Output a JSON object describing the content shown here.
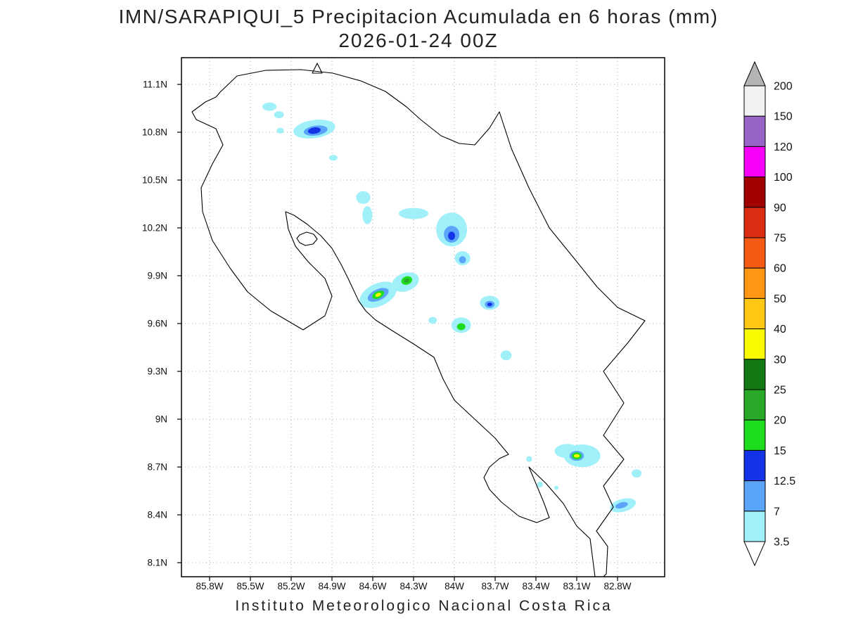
{
  "title": {
    "line1": "IMN/SARAPIQUI_5 Precipitacion Acumulada en 6 horas (mm)",
    "line2": "2026-01-24 00Z"
  },
  "footer": "Instituto Meteorologico Nacional Costa Rica",
  "map": {
    "y_axis_labels": [
      "11.1N",
      "10.8N",
      "10.5N",
      "10.2N",
      "9.9N",
      "9.6N",
      "9.3N",
      "9N",
      "8.7N",
      "8.4N",
      "8.1N"
    ],
    "x_axis_labels": [
      "85.8W",
      "85.5W",
      "85.2W",
      "84.9W",
      "84.6W",
      "84.3W",
      "84W",
      "83.7W",
      "83.4W",
      "83.1W",
      "82.8W"
    ]
  },
  "colorbar": {
    "tick_labels_top_to_bottom": [
      "200",
      "150",
      "120",
      "100",
      "90",
      "75",
      "60",
      "50",
      "40",
      "30",
      "25",
      "20",
      "15",
      "12.5",
      "7",
      "3.5"
    ],
    "arrow_top_color": "#b4b4b4",
    "arrow_bottom_color": "#ffffff",
    "segments_top_to_bottom": [
      "#f2f2f2",
      "#9964c8",
      "#fa00fa",
      "#a00000",
      "#dc2d14",
      "#f55a14",
      "#ff9614",
      "#ffc814",
      "#fafa00",
      "#147814",
      "#28aa28",
      "#1edc1e",
      "#1432e6",
      "#5aa5fa",
      "#a0f0fa"
    ]
  },
  "chart_data": {
    "type": "filled-contour-map",
    "title": "IMN/SARAPIQUI_5 Precipitacion Acumulada en 6 horas (mm)",
    "valid_time": "2026-01-24 00Z",
    "units": "mm",
    "region": "Costa Rica",
    "lon_ticks_w": [
      85.8,
      85.5,
      85.2,
      84.9,
      84.6,
      84.3,
      84.0,
      83.7,
      83.4,
      83.1,
      82.8
    ],
    "lat_ticks_n": [
      11.1,
      10.8,
      10.5,
      10.2,
      9.9,
      9.6,
      9.3,
      9.0,
      8.7,
      8.4,
      8.1
    ],
    "contour_levels_mm": [
      3.5,
      7,
      12.5,
      15,
      20,
      25,
      30,
      40,
      50,
      60,
      75,
      90,
      100,
      120,
      150,
      200
    ],
    "precip_cells": [
      {
        "lon_w": 85.36,
        "lat_n": 10.96,
        "rx_deg": 0.052,
        "ry_deg": 0.026,
        "rot_deg": 0,
        "min_mm": 3.5
      },
      {
        "lon_w": 85.29,
        "lat_n": 10.91,
        "rx_deg": 0.036,
        "ry_deg": 0.022,
        "rot_deg": 0,
        "min_mm": 3.5
      },
      {
        "lon_w": 85.03,
        "lat_n": 10.82,
        "rx_deg": 0.155,
        "ry_deg": 0.057,
        "rot_deg": -8,
        "min_mm": 3.5
      },
      {
        "lon_w": 85.02,
        "lat_n": 10.81,
        "rx_deg": 0.088,
        "ry_deg": 0.031,
        "rot_deg": -8,
        "min_mm": 7
      },
      {
        "lon_w": 85.03,
        "lat_n": 10.81,
        "rx_deg": 0.047,
        "ry_deg": 0.02,
        "rot_deg": -8,
        "min_mm": 12.5
      },
      {
        "lon_w": 85.28,
        "lat_n": 10.81,
        "rx_deg": 0.026,
        "ry_deg": 0.018,
        "rot_deg": 0,
        "min_mm": 3.5
      },
      {
        "lon_w": 84.89,
        "lat_n": 10.64,
        "rx_deg": 0.031,
        "ry_deg": 0.018,
        "rot_deg": 0,
        "min_mm": 3.5
      },
      {
        "lon_w": 84.67,
        "lat_n": 10.39,
        "rx_deg": 0.052,
        "ry_deg": 0.04,
        "rot_deg": 0,
        "min_mm": 3.5
      },
      {
        "lon_w": 84.64,
        "lat_n": 10.28,
        "rx_deg": 0.036,
        "ry_deg": 0.057,
        "rot_deg": 0,
        "min_mm": 3.5
      },
      {
        "lon_w": 84.3,
        "lat_n": 10.29,
        "rx_deg": 0.109,
        "ry_deg": 0.035,
        "rot_deg": 0,
        "min_mm": 3.5
      },
      {
        "lon_w": 84.02,
        "lat_n": 10.19,
        "rx_deg": 0.114,
        "ry_deg": 0.106,
        "rot_deg": 0,
        "min_mm": 3.5
      },
      {
        "lon_w": 84.02,
        "lat_n": 10.16,
        "rx_deg": 0.057,
        "ry_deg": 0.053,
        "rot_deg": 0,
        "min_mm": 7
      },
      {
        "lon_w": 84.02,
        "lat_n": 10.15,
        "rx_deg": 0.026,
        "ry_deg": 0.026,
        "rot_deg": 0,
        "min_mm": 12.5
      },
      {
        "lon_w": 83.94,
        "lat_n": 10.01,
        "rx_deg": 0.057,
        "ry_deg": 0.044,
        "rot_deg": 0,
        "min_mm": 3.5
      },
      {
        "lon_w": 83.94,
        "lat_n": 10.0,
        "rx_deg": 0.026,
        "ry_deg": 0.022,
        "rot_deg": 0,
        "min_mm": 7
      },
      {
        "lon_w": 84.36,
        "lat_n": 9.86,
        "rx_deg": 0.103,
        "ry_deg": 0.057,
        "rot_deg": -20,
        "min_mm": 3.5
      },
      {
        "lon_w": 84.35,
        "lat_n": 9.87,
        "rx_deg": 0.041,
        "ry_deg": 0.026,
        "rot_deg": -20,
        "min_mm": 15
      },
      {
        "lon_w": 84.35,
        "lat_n": 9.87,
        "rx_deg": 0.021,
        "ry_deg": 0.013,
        "rot_deg": -20,
        "min_mm": 20
      },
      {
        "lon_w": 84.56,
        "lat_n": 9.78,
        "rx_deg": 0.145,
        "ry_deg": 0.071,
        "rot_deg": -25,
        "min_mm": 3.5
      },
      {
        "lon_w": 84.56,
        "lat_n": 9.78,
        "rx_deg": 0.083,
        "ry_deg": 0.035,
        "rot_deg": -25,
        "min_mm": 7
      },
      {
        "lon_w": 84.56,
        "lat_n": 9.78,
        "rx_deg": 0.047,
        "ry_deg": 0.022,
        "rot_deg": -25,
        "min_mm": 15
      },
      {
        "lon_w": 84.56,
        "lat_n": 9.78,
        "rx_deg": 0.023,
        "ry_deg": 0.011,
        "rot_deg": -25,
        "min_mm": 30
      },
      {
        "lon_w": 84.16,
        "lat_n": 9.62,
        "rx_deg": 0.031,
        "ry_deg": 0.022,
        "rot_deg": 0,
        "min_mm": 3.5
      },
      {
        "lon_w": 83.95,
        "lat_n": 9.59,
        "rx_deg": 0.072,
        "ry_deg": 0.049,
        "rot_deg": 0,
        "min_mm": 3.5
      },
      {
        "lon_w": 83.95,
        "lat_n": 9.58,
        "rx_deg": 0.031,
        "ry_deg": 0.022,
        "rot_deg": 0,
        "min_mm": 15
      },
      {
        "lon_w": 83.74,
        "lat_n": 9.73,
        "rx_deg": 0.072,
        "ry_deg": 0.044,
        "rot_deg": 0,
        "min_mm": 3.5
      },
      {
        "lon_w": 83.74,
        "lat_n": 9.72,
        "rx_deg": 0.036,
        "ry_deg": 0.022,
        "rot_deg": 0,
        "min_mm": 7
      },
      {
        "lon_w": 83.74,
        "lat_n": 9.72,
        "rx_deg": 0.018,
        "ry_deg": 0.011,
        "rot_deg": 0,
        "min_mm": 12.5
      },
      {
        "lon_w": 83.62,
        "lat_n": 9.4,
        "rx_deg": 0.041,
        "ry_deg": 0.031,
        "rot_deg": 0,
        "min_mm": 3.5
      },
      {
        "lon_w": 83.17,
        "lat_n": 8.8,
        "rx_deg": 0.093,
        "ry_deg": 0.044,
        "rot_deg": 0,
        "min_mm": 3.5
      },
      {
        "lon_w": 83.06,
        "lat_n": 8.77,
        "rx_deg": 0.134,
        "ry_deg": 0.071,
        "rot_deg": 0,
        "min_mm": 3.5
      },
      {
        "lon_w": 83.1,
        "lat_n": 8.77,
        "rx_deg": 0.052,
        "ry_deg": 0.031,
        "rot_deg": 0,
        "min_mm": 7
      },
      {
        "lon_w": 83.1,
        "lat_n": 8.77,
        "rx_deg": 0.036,
        "ry_deg": 0.022,
        "rot_deg": 0,
        "min_mm": 15
      },
      {
        "lon_w": 83.1,
        "lat_n": 8.77,
        "rx_deg": 0.021,
        "ry_deg": 0.011,
        "rot_deg": 0,
        "min_mm": 30
      },
      {
        "lon_w": 83.45,
        "lat_n": 8.75,
        "rx_deg": 0.021,
        "ry_deg": 0.018,
        "rot_deg": 0,
        "min_mm": 3.5
      },
      {
        "lon_w": 83.37,
        "lat_n": 8.59,
        "rx_deg": 0.021,
        "ry_deg": 0.018,
        "rot_deg": 0,
        "min_mm": 3.5
      },
      {
        "lon_w": 83.25,
        "lat_n": 8.57,
        "rx_deg": 0.016,
        "ry_deg": 0.013,
        "rot_deg": 0,
        "min_mm": 3.5
      },
      {
        "lon_w": 82.66,
        "lat_n": 8.66,
        "rx_deg": 0.036,
        "ry_deg": 0.026,
        "rot_deg": 0,
        "min_mm": 3.5
      },
      {
        "lon_w": 82.76,
        "lat_n": 8.46,
        "rx_deg": 0.098,
        "ry_deg": 0.04,
        "rot_deg": -15,
        "min_mm": 3.5
      },
      {
        "lon_w": 82.77,
        "lat_n": 8.46,
        "rx_deg": 0.047,
        "ry_deg": 0.018,
        "rot_deg": -15,
        "min_mm": 7
      }
    ]
  }
}
